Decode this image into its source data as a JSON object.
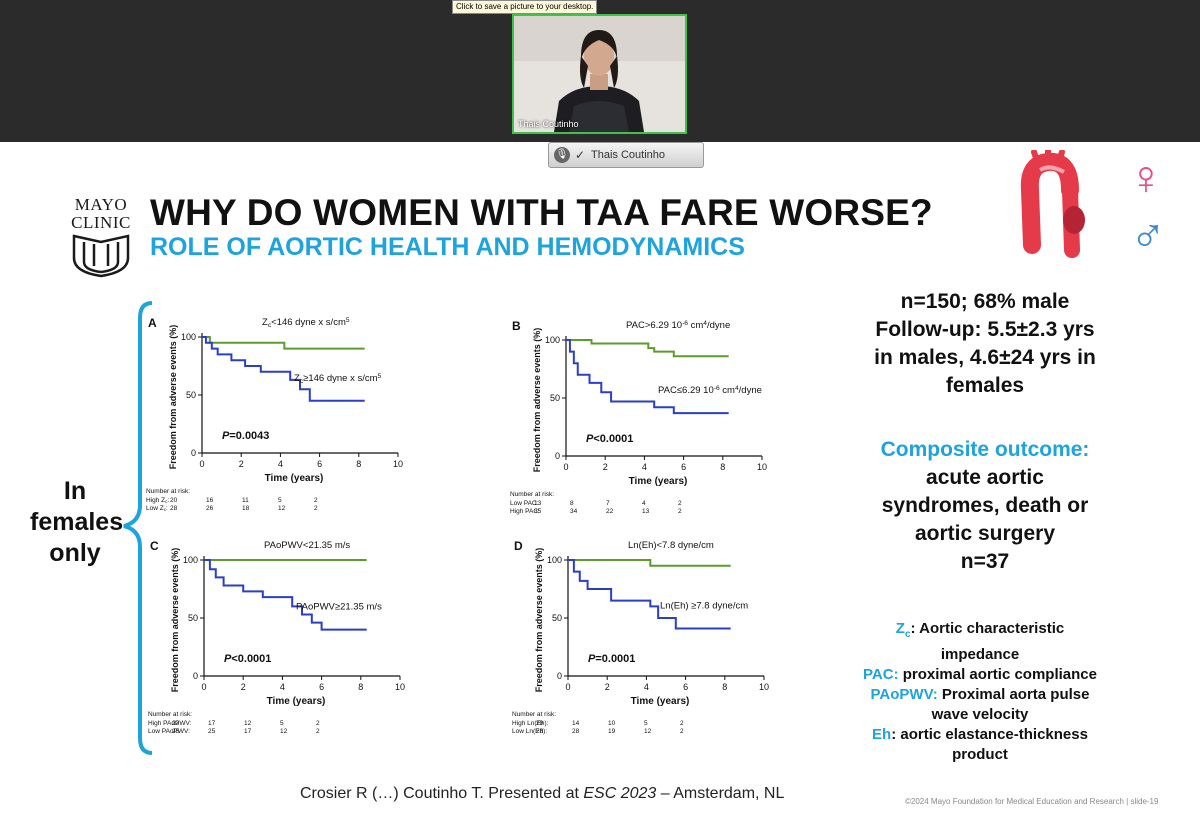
{
  "tooltip": "Click to save a picture to your desktop.",
  "video": {
    "name": "Thais Coutinho"
  },
  "speaker_bar": {
    "name": "Thais Coutinho"
  },
  "logo": {
    "line1": "MAYO",
    "line2": "CLINIC"
  },
  "title": "WHY DO WOMEN WITH TAA FARE WORSE?",
  "subtitle": "ROLE OF AORTIC HEALTH AND HEMODYNAMICS",
  "gender_symbols": {
    "female": "♀",
    "male": "♂"
  },
  "females_note": [
    "In",
    "females",
    "only"
  ],
  "stats": {
    "line1": "n=150; 68% male",
    "line2": "Follow-up: 5.5±2.3 yrs",
    "line3": "in males, 4.6±24 yrs in",
    "line4": "females"
  },
  "composite": {
    "heading": "Composite outcome:",
    "line1": "acute aortic",
    "line2": "syndromes, death or",
    "line3": "aortic surgery",
    "line4": "n=37"
  },
  "definitions": {
    "zc_term": "Z",
    "zc_sub": "c",
    "zc_desc": ": Aortic characteristic",
    "zc_desc2": "impedance",
    "pac_term": "PAC:",
    "pac_desc": " proximal aortic compliance",
    "paopwv_term": "PAoPWV:",
    "paopwv_desc": " Proximal aorta pulse",
    "paopwv_desc2": "wave velocity",
    "eh_term": "Eh",
    "eh_desc": ": aortic elastance-thickness",
    "eh_desc2": "product"
  },
  "citation": {
    "pre": "Crosier R (…) Coutinho T. Presented at ",
    "venue": "ESC 2023",
    "post": " – Amsterdam, NL"
  },
  "copyright": "©2024 Mayo Foundation for Medical Education and Research  |  slide-19",
  "colors": {
    "high_risk": "#2a3fc4",
    "low_risk": "#5f9a2e",
    "accent": "#1fa3dc"
  },
  "chart_data": [
    {
      "type": "line",
      "panel": "A",
      "xlabel": "Time (years)",
      "ylabel": "Freedom from adverse events (%)",
      "xlim": [
        0,
        10
      ],
      "ylim": [
        0,
        100
      ],
      "xticks": [
        0,
        2,
        4,
        6,
        8,
        10
      ],
      "yticks": [
        0,
        50,
        100
      ],
      "pvalue_label": "P",
      "pvalue": "=0.0043",
      "series": [
        {
          "name": "Z<sub>c</sub><146 dyne x s/cm<sup>5</sup>",
          "color": "green",
          "x": [
            0,
            0.4,
            4.2,
            8.3
          ],
          "y": [
            100,
            95,
            90,
            90
          ]
        },
        {
          "name": "Z<sub>c</sub>≥146 dyne x s/cm<sup>5</sup>",
          "color": "blue",
          "x": [
            0,
            0.2,
            0.5,
            0.8,
            1.5,
            2.2,
            3.0,
            4.5,
            5.0,
            5.5,
            8.3
          ],
          "y": [
            100,
            95,
            90,
            85,
            80,
            75,
            70,
            63,
            55,
            45,
            45
          ]
        }
      ],
      "risk_table": {
        "heading": "Number at risk:",
        "rows": [
          {
            "label": "High Z<sub>c</sub>:",
            "values": [
              "20",
              "16",
              "11",
              "5",
              "2"
            ]
          },
          {
            "label": "Low Z<sub>c</sub>:",
            "values": [
              "28",
              "26",
              "18",
              "12",
              "2"
            ]
          }
        ]
      }
    },
    {
      "type": "line",
      "panel": "B",
      "xlabel": "Time (years)",
      "ylabel": "Freedom from adverse events (%)",
      "xlim": [
        0,
        10
      ],
      "ylim": [
        0,
        100
      ],
      "xticks": [
        0,
        2,
        4,
        6,
        8,
        10
      ],
      "yticks": [
        0,
        50,
        100
      ],
      "pvalue_label": "P",
      "pvalue": "<0.0001",
      "series": [
        {
          "name": "PAC>6.29 10<sup>-6</sup> cm<sup>4</sup>/dyne",
          "color": "green",
          "x": [
            0,
            1.3,
            4.2,
            4.5,
            5.5,
            8.3
          ],
          "y": [
            100,
            97,
            93,
            90,
            86,
            86
          ]
        },
        {
          "name": "PAC≤6.29 10<sup>-6</sup> cm<sup>4</sup>/dyne",
          "color": "blue",
          "x": [
            0,
            0.2,
            0.4,
            0.6,
            1.2,
            1.8,
            2.3,
            4.5,
            5.5,
            8.3
          ],
          "y": [
            100,
            90,
            80,
            70,
            63,
            55,
            47,
            42,
            37,
            37
          ]
        }
      ],
      "risk_table": {
        "heading": "Number at risk:",
        "rows": [
          {
            "label": "Low PAC:",
            "values": [
              "13",
              "8",
              "7",
              "4",
              "2"
            ]
          },
          {
            "label": "High PAC:",
            "values": [
              "35",
              "34",
              "22",
              "13",
              "2"
            ]
          }
        ]
      }
    },
    {
      "type": "line",
      "panel": "C",
      "xlabel": "Time (years)",
      "ylabel": "Freedom from adverse events (%)",
      "xlim": [
        0,
        10
      ],
      "ylim": [
        0,
        100
      ],
      "xticks": [
        0,
        2,
        4,
        6,
        8,
        10
      ],
      "yticks": [
        0,
        50,
        100
      ],
      "pvalue_label": "P",
      "pvalue": "<0.0001",
      "series": [
        {
          "name": "PAoPWV<21.35 m/s",
          "color": "green",
          "x": [
            0,
            8.3
          ],
          "y": [
            100,
            100
          ]
        },
        {
          "name": "PAoPWV≥21.35 m/s",
          "color": "blue",
          "x": [
            0,
            0.3,
            0.6,
            1.0,
            2.0,
            3.0,
            4.5,
            5.0,
            5.5,
            6.0,
            8.3
          ],
          "y": [
            100,
            92,
            85,
            78,
            73,
            68,
            60,
            53,
            46,
            40,
            40
          ]
        }
      ],
      "risk_table": {
        "heading": "Number at risk:",
        "rows": [
          {
            "label": "High PAoPWV:",
            "values": [
              "23",
              "17",
              "12",
              "5",
              "2"
            ]
          },
          {
            "label": "Low PAoPWV:",
            "values": [
              "25",
              "25",
              "17",
              "12",
              "2"
            ]
          }
        ]
      }
    },
    {
      "type": "line",
      "panel": "D",
      "xlabel": "Time (years)",
      "ylabel": "Freedom from adverse events (%)",
      "xlim": [
        0,
        10
      ],
      "ylim": [
        0,
        100
      ],
      "xticks": [
        0,
        2,
        4,
        6,
        8,
        10
      ],
      "yticks": [
        0,
        50,
        100
      ],
      "pvalue_label": "P",
      "pvalue": "=0.0001",
      "series": [
        {
          "name": "Ln(Eh)<7.8 dyne/cm",
          "color": "green",
          "x": [
            0,
            4.2,
            8.3
          ],
          "y": [
            100,
            95,
            95
          ]
        },
        {
          "name": "Ln(Eh) ≥7.8 dyne/cm",
          "color": "blue",
          "x": [
            0,
            0.3,
            0.6,
            1.0,
            2.2,
            4.2,
            4.6,
            5.5,
            8.3
          ],
          "y": [
            100,
            90,
            82,
            75,
            65,
            60,
            50,
            41,
            41
          ]
        }
      ],
      "risk_table": {
        "heading": "Number at risk:",
        "rows": [
          {
            "label": "High Ln(Eh):",
            "values": [
              "20",
              "14",
              "10",
              "5",
              "2"
            ]
          },
          {
            "label": "Low Ln(Eh):",
            "values": [
              "28",
              "28",
              "19",
              "12",
              "2"
            ]
          }
        ]
      }
    }
  ]
}
